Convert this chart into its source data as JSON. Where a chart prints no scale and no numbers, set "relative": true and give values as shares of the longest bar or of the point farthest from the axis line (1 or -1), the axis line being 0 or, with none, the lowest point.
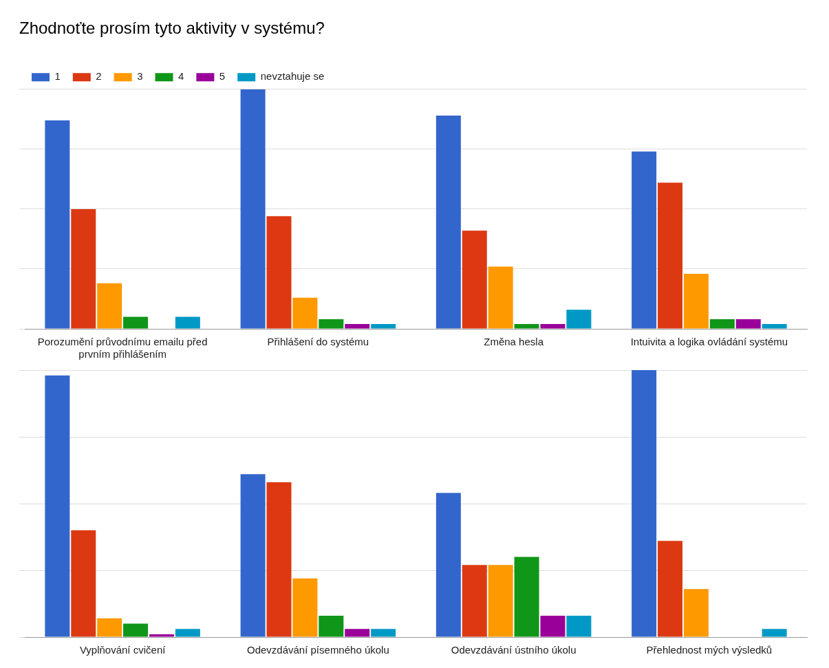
{
  "chart_data": [
    {
      "type": "bar",
      "title": "Zhodnoťte prosím tyto aktivity v systému?",
      "relative": true,
      "grid": "y",
      "legend": "top left",
      "categories": [
        "Porozumění průvodnímu emailu před prvním přihlášením",
        "Přihlášení do systému",
        "Změna hesla",
        "Intuivita a logika ovládání systému"
      ],
      "series": [
        {
          "name": "1",
          "color": "#3366cc",
          "values": [
            0.87,
            1,
            0.89,
            0.74
          ]
        },
        {
          "name": "2",
          "color": "#dc3912",
          "values": [
            0.5,
            0.47,
            0.41,
            0.61
          ]
        },
        {
          "name": "3",
          "color": "#ff9900",
          "values": [
            0.19,
            0.13,
            0.26,
            0.23
          ]
        },
        {
          "name": "4",
          "color": "#109618",
          "values": [
            0.05,
            0.04,
            0.02,
            0.04
          ]
        },
        {
          "name": "5",
          "color": "#990099",
          "values": [
            0,
            0.02,
            0.02,
            0.04
          ]
        },
        {
          "name": "nevztahuje se",
          "color": "#0099c6",
          "values": [
            0.05,
            0.02,
            0.08,
            0.02
          ]
        }
      ]
    },
    {
      "type": "bar",
      "relative": true,
      "grid": "y",
      "categories": [
        "Vyplňování cvičení",
        "Odevzdávání písemného úkolu",
        "Odevzdávání ústního úkolu",
        "Přehlednost mých výsledků"
      ],
      "series": [
        {
          "color": "#3366cc",
          "values": [
            0.98,
            0.61,
            0.54,
            1
          ]
        },
        {
          "color": "#dc3912",
          "values": [
            0.4,
            0.58,
            0.27,
            0.36
          ]
        },
        {
          "color": "#ff9900",
          "values": [
            0.07,
            0.22,
            0.27,
            0.18
          ]
        },
        {
          "color": "#109618",
          "values": [
            0.05,
            0.08,
            0.3,
            0
          ]
        },
        {
          "color": "#990099",
          "values": [
            0.01,
            0.03,
            0.08,
            0
          ]
        },
        {
          "color": "#0099c6",
          "values": [
            0.03,
            0.03,
            0.08,
            0.03
          ]
        }
      ]
    }
  ]
}
